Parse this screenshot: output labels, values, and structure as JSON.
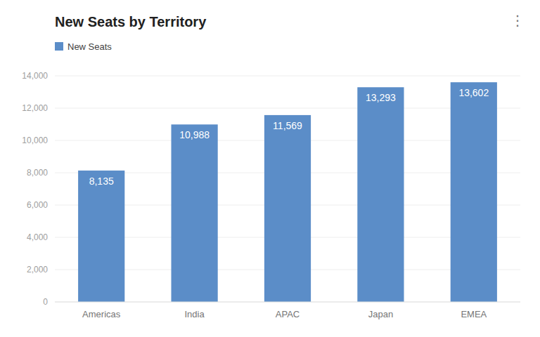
{
  "chart_data": {
    "type": "bar",
    "title": "New Seats by Territory",
    "categories": [
      "Americas",
      "India",
      "APAC",
      "Japan",
      "EMEA"
    ],
    "series": [
      {
        "name": "New Seats",
        "color": "#5b8dc8",
        "values": [
          8135,
          10988,
          11569,
          13293,
          13602
        ],
        "value_labels": [
          "8,135",
          "10,988",
          "11,569",
          "13,293",
          "13,602"
        ]
      }
    ],
    "ylim": [
      0,
      14000
    ],
    "yticks": [
      0,
      {
        "value": 2000,
        "label": "2,000"
      },
      {
        "value": 4000,
        "label": "4,000"
      },
      {
        "value": 6000,
        "label": "6,000"
      },
      {
        "value": 8000,
        "label": "8,000"
      },
      {
        "value": 10000,
        "label": "10,000"
      },
      {
        "value": 12000,
        "label": "12,000"
      },
      {
        "value": 14000,
        "label": "14,000"
      }
    ],
    "grid": true,
    "legend": "upper left",
    "data_labels": true,
    "annotations": [
      "⋮"
    ]
  }
}
